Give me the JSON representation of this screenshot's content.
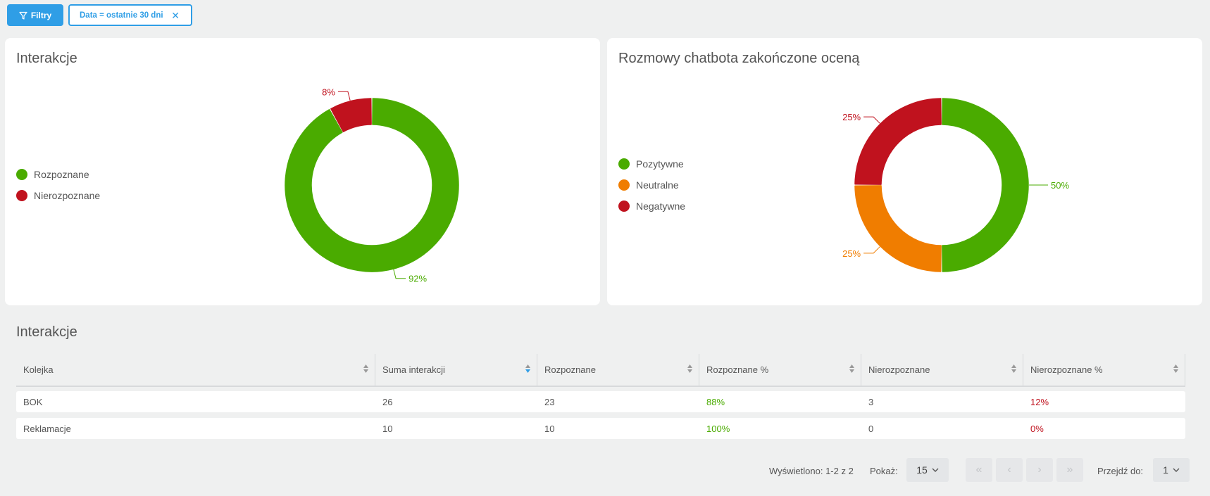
{
  "toolbar": {
    "filter_button_label": "Filtry",
    "active_filter_label": "Data = ostatnie 30 dni",
    "active_filter_close": "✕"
  },
  "cards": [
    {
      "title": "Interakcje",
      "legend": [
        {
          "label": "Rozpoznane",
          "color": "#4aab00"
        },
        {
          "label": "Nierozpoznane",
          "color": "#c0121e"
        }
      ]
    },
    {
      "title": "Rozmowy chatbota zakończone oceną",
      "legend": [
        {
          "label": "Pozytywne",
          "color": "#4aab00"
        },
        {
          "label": "Neutralne",
          "color": "#f07d00"
        },
        {
          "label": "Negatywne",
          "color": "#c0121e"
        }
      ]
    }
  ],
  "chart_data": [
    {
      "type": "pie",
      "title": "Interakcje",
      "categories": [
        "Rozpoznane",
        "Nierozpoznane"
      ],
      "values": [
        92,
        8
      ],
      "labels": [
        "92%",
        "8%"
      ],
      "colors": [
        "#4aab00",
        "#c0121e"
      ],
      "legend": "left"
    },
    {
      "type": "pie",
      "title": "Rozmowy chatbota zakończone oceną",
      "categories": [
        "Pozytywne",
        "Neutralne",
        "Negatywne"
      ],
      "values": [
        50,
        25,
        25
      ],
      "labels": [
        "50%",
        "25%",
        "25%"
      ],
      "colors": [
        "#4aab00",
        "#f07d00",
        "#c0121e"
      ],
      "legend": "left"
    }
  ],
  "table": {
    "title": "Interakcje",
    "columns": [
      "Kolejka",
      "Suma interakcji",
      "Rozpoznane",
      "Rozpoznane %",
      "Nierozpoznane",
      "Nierozpoznane %"
    ],
    "rows": [
      [
        "BOK",
        "26",
        "23",
        "88%",
        "3",
        "12%"
      ],
      [
        "Reklamacje",
        "10",
        "10",
        "100%",
        "0",
        "0%"
      ]
    ],
    "sorted_column": "Suma interakcji"
  },
  "pagination": {
    "shown_text": "Wyświetlono: 1-2 z 2",
    "show_label": "Pokaż:",
    "page_size": "15",
    "goto_label": "Przejdź do:",
    "current_page": "1",
    "first_icon": "«",
    "prev_icon": "‹",
    "next_icon": "›",
    "last_icon": "»"
  }
}
